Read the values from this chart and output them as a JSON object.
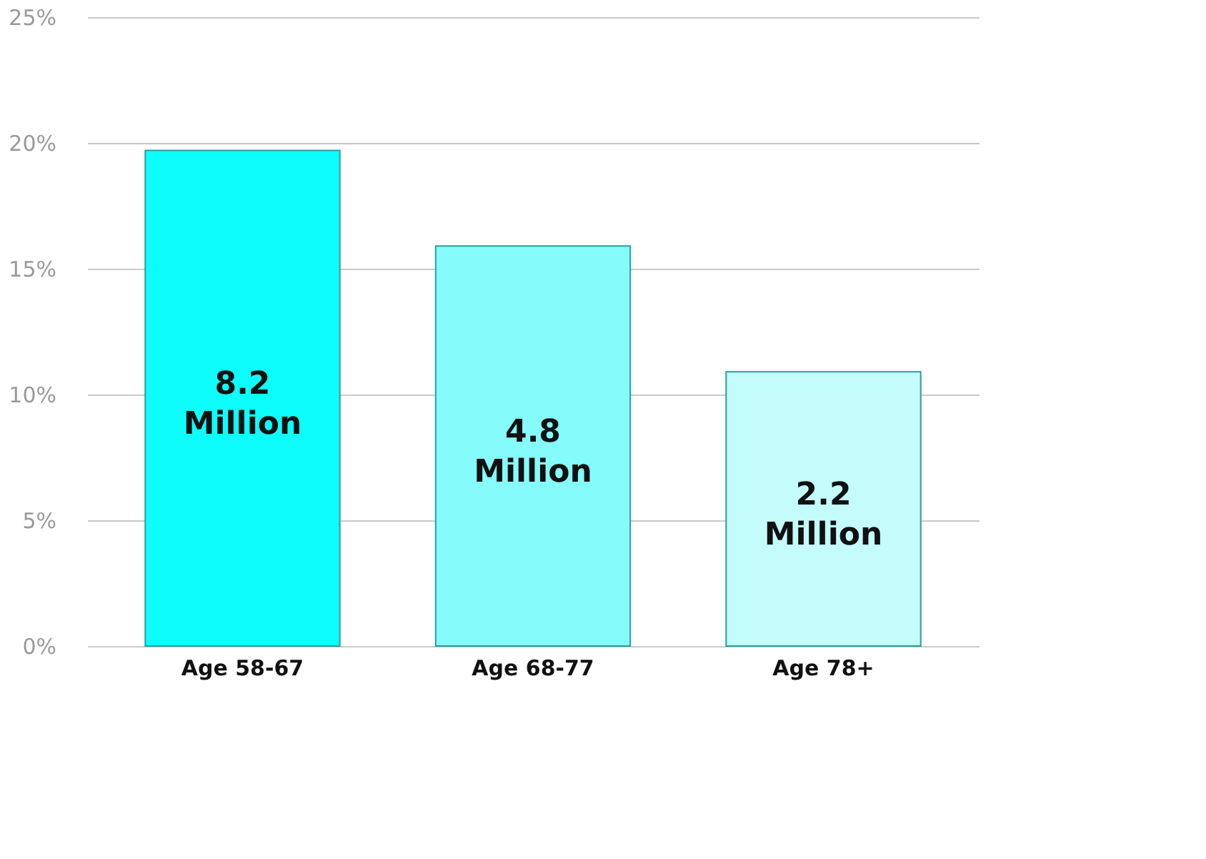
{
  "chart_data": {
    "type": "bar",
    "categories": [
      "Age 58-67",
      "Age 68-77",
      "Age 78+"
    ],
    "values": [
      19.7,
      15.9,
      10.9
    ],
    "colors": [
      "#0dfdfd",
      "#85fbfb",
      "#c4fbfb"
    ],
    "annotations": [
      "8.2\nMillion",
      "4.8\nMillion",
      "2.2\nMillion"
    ],
    "ylim": [
      0,
      25
    ],
    "yticks": [
      {
        "value": 0,
        "label": "0%"
      },
      {
        "value": 5,
        "label": "5%"
      },
      {
        "value": 10,
        "label": "10%"
      },
      {
        "value": 15,
        "label": "15%"
      },
      {
        "value": 20,
        "label": "20%"
      },
      {
        "value": 25,
        "label": "25%"
      }
    ],
    "grid": "y"
  }
}
